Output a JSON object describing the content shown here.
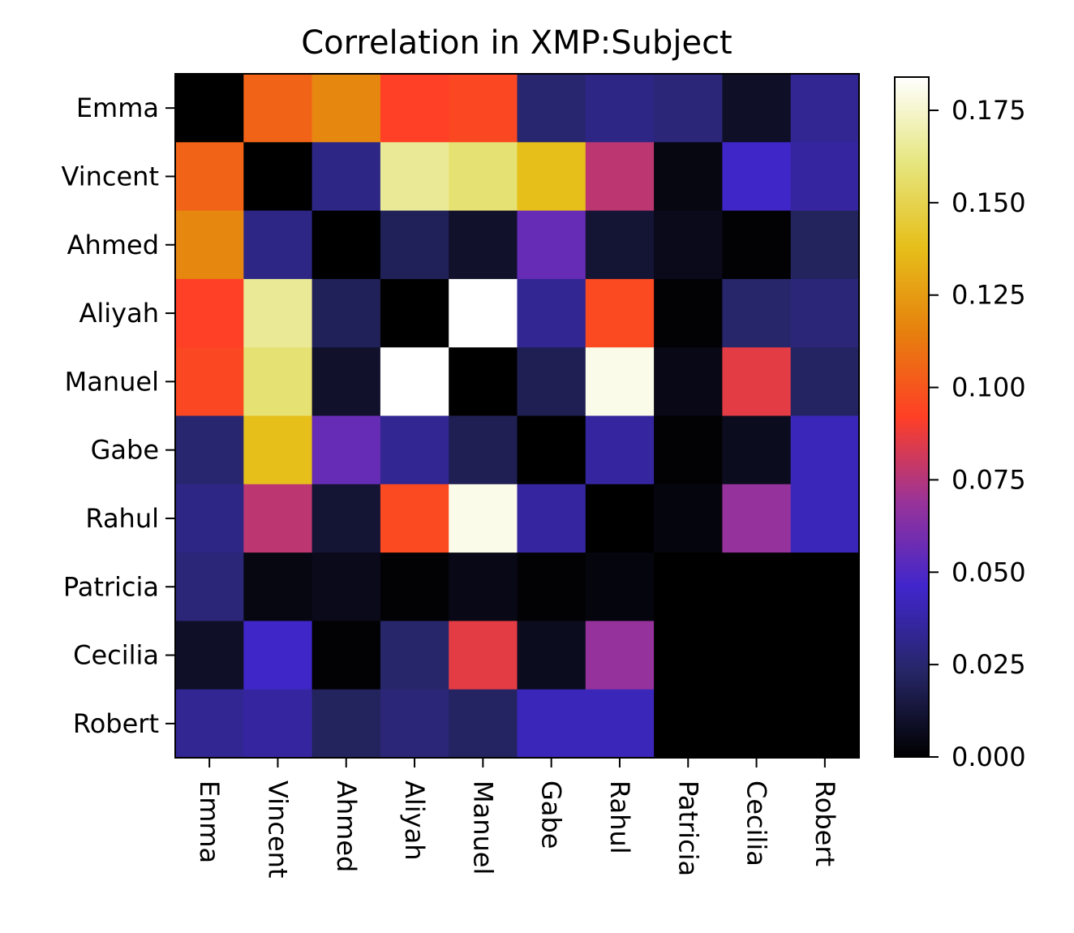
{
  "chart_data": {
    "type": "heatmap",
    "title": "Correlation in XMP:Subject",
    "xlabel": "",
    "ylabel": "",
    "row_labels": [
      "Emma",
      "Vincent",
      "Ahmed",
      "Aliyah",
      "Manuel",
      "Gabe",
      "Rahul",
      "Patricia",
      "Cecilia",
      "Robert"
    ],
    "col_labels": [
      "Emma",
      "Vincent",
      "Ahmed",
      "Aliyah",
      "Manuel",
      "Gabe",
      "Rahul",
      "Patricia",
      "Cecilia",
      "Robert"
    ],
    "values": [
      [
        0.0,
        0.105,
        0.118,
        0.092,
        0.095,
        0.025,
        0.03,
        0.027,
        0.009,
        0.033
      ],
      [
        0.105,
        0.0,
        0.03,
        0.165,
        0.158,
        0.138,
        0.077,
        0.004,
        0.045,
        0.036
      ],
      [
        0.118,
        0.03,
        0.0,
        0.02,
        0.01,
        0.056,
        0.012,
        0.006,
        0.001,
        0.021
      ],
      [
        0.092,
        0.165,
        0.02,
        0.0,
        0.184,
        0.033,
        0.096,
        0.001,
        0.024,
        0.027
      ],
      [
        0.095,
        0.158,
        0.01,
        0.184,
        0.0,
        0.019,
        0.18,
        0.005,
        0.086,
        0.022
      ],
      [
        0.025,
        0.138,
        0.056,
        0.033,
        0.019,
        0.0,
        0.036,
        0.001,
        0.007,
        0.042
      ],
      [
        0.03,
        0.077,
        0.012,
        0.096,
        0.18,
        0.036,
        0.0,
        0.003,
        0.068,
        0.042
      ],
      [
        0.027,
        0.004,
        0.006,
        0.001,
        0.005,
        0.001,
        0.003,
        0.0,
        0.0,
        0.0
      ],
      [
        0.009,
        0.045,
        0.001,
        0.024,
        0.086,
        0.007,
        0.068,
        0.0,
        0.0,
        0.0
      ],
      [
        0.033,
        0.036,
        0.021,
        0.027,
        0.022,
        0.042,
        0.042,
        0.0,
        0.0,
        0.0
      ]
    ],
    "colormap": "CMRmap",
    "vmin": 0.0,
    "vmax": 0.184,
    "colorbar_ticks": [
      "0.000",
      "0.025",
      "0.050",
      "0.075",
      "0.100",
      "0.125",
      "0.150",
      "0.175"
    ],
    "colorbar_tick_values": [
      0.0,
      0.025,
      0.05,
      0.075,
      0.1,
      0.125,
      0.15,
      0.175
    ],
    "x_tick_rotation": "rotated vertical",
    "grid": false,
    "legend": "colorbar right"
  }
}
